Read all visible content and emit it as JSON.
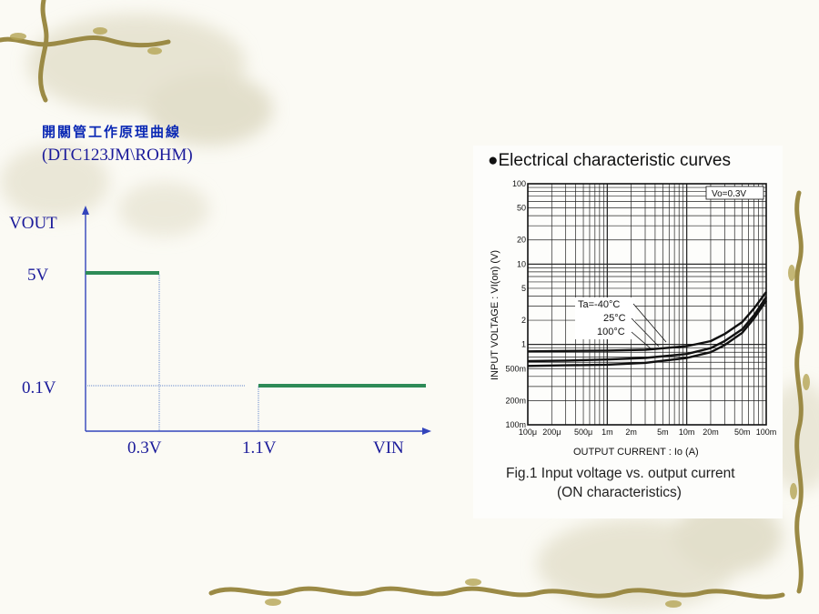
{
  "slide": {
    "title_cn": "開關管工作原理曲線",
    "title_part": "(DTC123JM\\ROHM)"
  },
  "chart_data": [
    {
      "type": "line",
      "title": "",
      "xlabel": "VIN",
      "ylabel": "VOUT",
      "x_ticks": [
        "0.3V",
        "1.1V"
      ],
      "y_ticks": [
        "5V",
        "0.1V"
      ],
      "series": [
        {
          "x": [
            0,
            0.3
          ],
          "y": [
            5,
            5
          ]
        },
        {
          "x": [
            1.1,
            3.5
          ],
          "y": [
            0.1,
            0.1
          ]
        }
      ],
      "guides": [
        {
          "type": "vertical",
          "x": 0.3
        },
        {
          "type": "vertical",
          "x": 1.1
        },
        {
          "type": "horizontal",
          "y": 0.1
        }
      ],
      "colors": {
        "line": "#2e8b57",
        "axis": "#3344bb",
        "guide": "#6688cc"
      }
    },
    {
      "type": "line",
      "title": "Electrical characteristic curves",
      "xlabel": "OUTPUT  CURRENT : Io (A)",
      "ylabel": "INPUT  VOLTAGE : VI(on) (V)",
      "x_scale": "log",
      "y_scale": "log",
      "xlim": [
        0.0001,
        0.1
      ],
      "ylim": [
        0.1,
        100
      ],
      "x_tick_labels": [
        "100μ",
        "200μ",
        "500μ",
        "1m",
        "2m",
        "5m",
        "10m",
        "20m",
        "50m",
        "100m"
      ],
      "x_tick_values": [
        0.0001,
        0.0002,
        0.0005,
        0.001,
        0.002,
        0.005,
        0.01,
        0.02,
        0.05,
        0.1
      ],
      "y_tick_labels": [
        "100m",
        "200m",
        "500m",
        "1",
        "2",
        "5",
        "10",
        "20",
        "50",
        "100"
      ],
      "y_tick_values": [
        0.1,
        0.2,
        0.5,
        1,
        2,
        5,
        10,
        20,
        50,
        100
      ],
      "condition_label": "Vo=0.3V",
      "annotations": [
        "Ta=-40°C",
        "25°C",
        "100°C"
      ],
      "grid": true,
      "series": [
        {
          "name": "Ta=-40°C",
          "x": [
            0.0001,
            0.0003,
            0.001,
            0.003,
            0.01,
            0.02,
            0.03,
            0.05,
            0.07,
            0.1
          ],
          "y": [
            0.82,
            0.83,
            0.84,
            0.86,
            0.95,
            1.1,
            1.35,
            1.9,
            2.8,
            4.5
          ]
        },
        {
          "name": "25°C",
          "x": [
            0.0001,
            0.0003,
            0.001,
            0.003,
            0.01,
            0.02,
            0.03,
            0.05,
            0.07,
            0.1
          ],
          "y": [
            0.62,
            0.63,
            0.65,
            0.68,
            0.76,
            0.9,
            1.1,
            1.55,
            2.3,
            3.9
          ]
        },
        {
          "name": "100°C",
          "x": [
            0.0001,
            0.0003,
            0.001,
            0.003,
            0.01,
            0.02,
            0.03,
            0.05,
            0.07,
            0.1
          ],
          "y": [
            0.54,
            0.55,
            0.56,
            0.59,
            0.68,
            0.8,
            0.98,
            1.4,
            2.1,
            3.5
          ]
        }
      ],
      "caption": [
        "Fig.1  Input voltage vs. output current",
        "(ON characteristics)"
      ]
    }
  ]
}
